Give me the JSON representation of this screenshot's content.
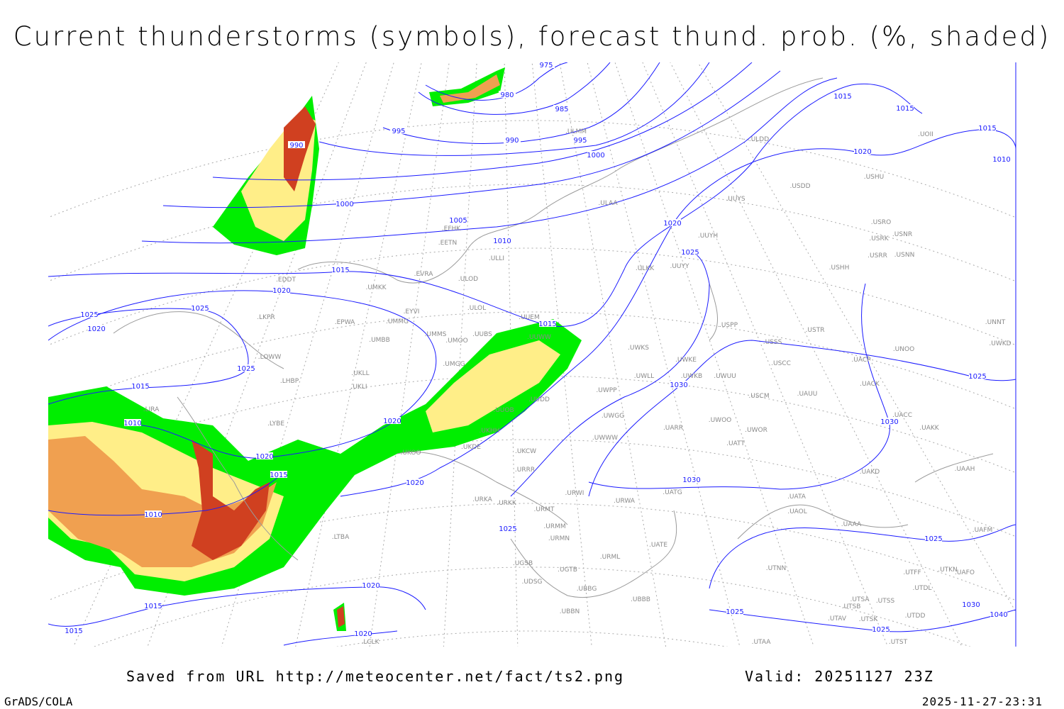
{
  "title": "Current thunderstorms (symbols), forecast thund. prob. (%, shaded)",
  "footer": {
    "saved": "Saved from URL http://meteocenter.net/fact/ts2.png",
    "valid": "Valid: 20251127 23Z",
    "software": "GrADS/COLA",
    "timestamp": "2025-11-27-23:31"
  },
  "colors": {
    "isobar": "#1a1aff",
    "coastline": "#9a9a9a",
    "prob_low": "#00ee00",
    "prob_mid": "#ffee88",
    "prob_high": "#f0a050",
    "prob_max": "#d04020"
  },
  "isobar_labels": [
    "975",
    "980",
    "985",
    "990",
    "990",
    "995",
    "995",
    "1000",
    "1000",
    "1005",
    "1010",
    "1010",
    "1010",
    "1010",
    "1015",
    "1015",
    "1015",
    "1015",
    "1015",
    "1015",
    "1015",
    "1015",
    "1015",
    "1020",
    "1020",
    "1020",
    "1020",
    "1020",
    "1020",
    "1020",
    "1020",
    "1020",
    "1025",
    "1025",
    "1025",
    "1025",
    "1025",
    "1025",
    "1025",
    "1025",
    "1025",
    "1030",
    "1030",
    "1030",
    "1030",
    "1040"
  ],
  "stations": [
    "EDDT",
    "EPWA",
    "UMKK",
    "EVRA",
    "ULOD",
    "ULOL",
    "EYVI",
    "UMMG",
    "UMMS",
    "UMOO",
    "UUBS",
    "UUEM",
    "UUWW",
    "UMBB",
    "UMGG",
    "UKLL",
    "UKLI",
    "LHBP",
    "LOWW",
    "LKPR",
    "LIRA",
    "LYBE",
    "UUOB",
    "UUDD",
    "UKHH",
    "UKDE",
    "UKOO",
    "URRR",
    "UKCW",
    "URWI",
    "URMT",
    "URMM",
    "URMN",
    "URKK",
    "URKA",
    "UGSB",
    "UDSG",
    "UGTB",
    "UBBG",
    "UBBN",
    "UBBB",
    "URML",
    "UATE",
    "UATG",
    "URWA",
    "UWWW",
    "UWGG",
    "UWPP",
    "UWLL",
    "UWKE",
    "UWKB",
    "UWUU",
    "UWKS",
    "UUYH",
    "UUYS",
    "ULKK",
    "UUYY",
    "ULAA",
    "ULDD",
    "USDD",
    "USPP",
    "USSS",
    "USTR",
    "USCC",
    "USCM",
    "UAUU",
    "UARR",
    "UWOO",
    "UWOR",
    "UATT",
    "UACP",
    "UACK",
    "UACC",
    "UAKK",
    "UAKD",
    "UAAH",
    "UATA",
    "UAOL",
    "UAAA",
    "UTNN",
    "UTSA",
    "UTSS",
    "UTSB",
    "UTAV",
    "UTSK",
    "UTAA",
    "UTST",
    "UTDD",
    "UTDL",
    "UTKN",
    "UAFO",
    "UAFM",
    "USHH",
    "USRR",
    "USRK",
    "USRO",
    "USNR",
    "USNN",
    "USHU",
    "UNOO",
    "UNNT",
    "UOII",
    "ULMM",
    "EFHK",
    "EETN",
    "ULLI",
    "LTBA",
    "LCLK",
    "UTFF",
    "UWKD"
  ]
}
